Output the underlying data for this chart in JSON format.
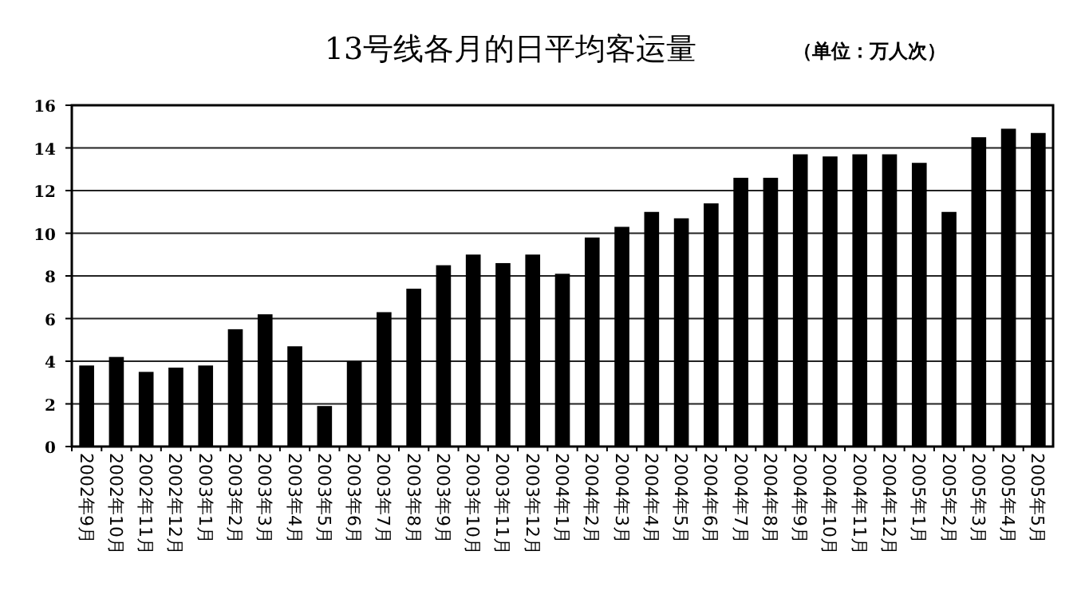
{
  "chart_data": {
    "type": "bar",
    "title": "13号线各月的日平均客运量",
    "subtitle": "（单位：万人次）",
    "categories": [
      "2002年9月",
      "2002年10月",
      "2002年11月",
      "2002年12月",
      "2003年1月",
      "2003年2月",
      "2003年3月",
      "2003年4月",
      "2003年5月",
      "2003年6月",
      "2003年7月",
      "2003年8月",
      "2003年9月",
      "2003年10月",
      "2003年11月",
      "2003年12月",
      "2004年1月",
      "2004年2月",
      "2004年3月",
      "2004年4月",
      "2004年5月",
      "2004年6月",
      "2004年7月",
      "2004年8月",
      "2004年9月",
      "2004年10月",
      "2004年11月",
      "2004年12月",
      "2005年1月",
      "2005年2月",
      "2005年3月",
      "2005年4月",
      "2005年5月"
    ],
    "values": [
      3.8,
      4.2,
      3.5,
      3.7,
      3.8,
      5.5,
      6.2,
      4.7,
      1.9,
      4.0,
      6.3,
      7.4,
      8.5,
      9.0,
      8.6,
      9.0,
      8.1,
      9.8,
      10.3,
      11.0,
      10.7,
      11.4,
      12.6,
      12.6,
      13.7,
      13.6,
      13.7,
      13.7,
      13.3,
      11.0,
      14.5,
      14.9,
      14.7
    ],
    "color": "#000000",
    "ylim": [
      0,
      16
    ],
    "yticks": [
      0,
      2,
      4,
      6,
      8,
      10,
      12,
      14,
      16
    ],
    "grid": "y"
  }
}
